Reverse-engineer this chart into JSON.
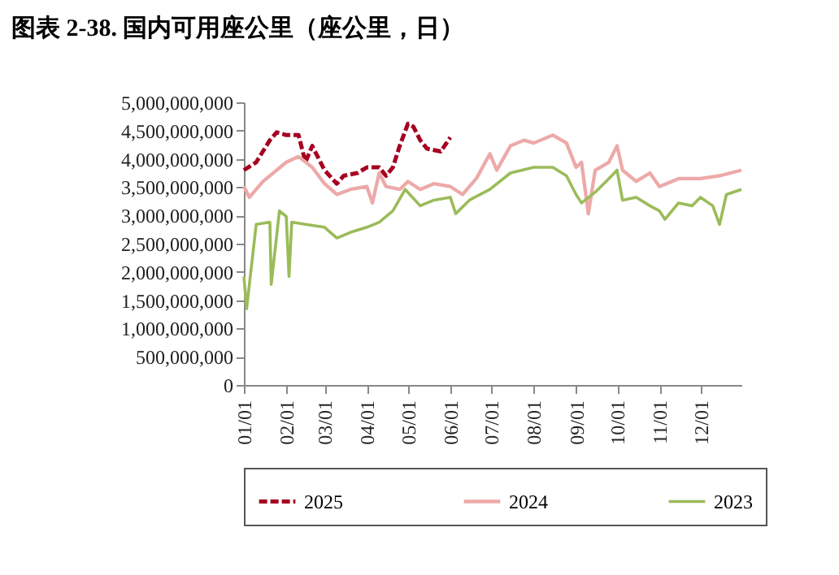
{
  "chart_data": {
    "type": "line",
    "title": "图表 2-38. 国内可用座公里（座公里，日）",
    "xlim": [
      "--01-01",
      "--12-31"
    ],
    "xticks": [
      {
        "value": "--01-01",
        "label": "01/01"
      },
      {
        "value": "--02-01",
        "label": "02/01"
      },
      {
        "value": "--03-01",
        "label": "03/01"
      },
      {
        "value": "--04-01",
        "label": "04/01"
      },
      {
        "value": "--05-01",
        "label": "05/01"
      },
      {
        "value": "--06-01",
        "label": "06/01"
      },
      {
        "value": "--07-01",
        "label": "07/01"
      },
      {
        "value": "--08-01",
        "label": "08/01"
      },
      {
        "value": "--09-01",
        "label": "09/01"
      },
      {
        "value": "--10-01",
        "label": "10/01"
      },
      {
        "value": "--11-01",
        "label": "11/01"
      },
      {
        "value": "--12-01",
        "label": "12/01"
      }
    ],
    "ylim": [
      0,
      5000000000
    ],
    "yticks": [
      {
        "value": 0,
        "label": "0"
      },
      {
        "value": 500000000,
        "label": "500,000,000"
      },
      {
        "value": 1000000000,
        "label": "1,000,000,000"
      },
      {
        "value": 1500000000,
        "label": "1,500,000,000"
      },
      {
        "value": 2000000000,
        "label": "2,000,000,000"
      },
      {
        "value": 2500000000,
        "label": "2,500,000,000"
      },
      {
        "value": 3000000000,
        "label": "3,000,000,000"
      },
      {
        "value": 3500000000,
        "label": "3,500,000,000"
      },
      {
        "value": 4000000000,
        "label": "4,000,000,000"
      },
      {
        "value": 4500000000,
        "label": "4,500,000,000"
      },
      {
        "value": 5000000000,
        "label": "5,000,000,000"
      }
    ],
    "legend": "bottom",
    "grid": false,
    "series": [
      {
        "name": "2025",
        "color": "#a50021",
        "line_style": "dashed",
        "x": [
          "--01-01",
          "--01-10",
          "--01-20",
          "--01-25",
          "--02-01",
          "--02-10",
          "--02-15",
          "--02-20",
          "--03-01",
          "--03-10",
          "--03-15",
          "--03-25",
          "--04-01",
          "--04-10",
          "--04-15",
          "--04-20",
          "--04-25",
          "--05-01",
          "--05-05",
          "--05-10",
          "--05-15",
          "--05-25",
          "--06-01"
        ],
        "values": [
          3800000000,
          3940000000,
          4330000000,
          4470000000,
          4420000000,
          4420000000,
          3940000000,
          4230000000,
          3800000000,
          3560000000,
          3700000000,
          3750000000,
          3850000000,
          3850000000,
          3700000000,
          3850000000,
          4230000000,
          4620000000,
          4570000000,
          4330000000,
          4180000000,
          4130000000,
          4380000000
        ]
      },
      {
        "name": "2024",
        "color": "#eda9a9",
        "line_style": "solid",
        "x": [
          "--01-01",
          "--01-05",
          "--01-15",
          "--01-25",
          "--02-01",
          "--02-10",
          "--02-20",
          "--03-01",
          "--03-10",
          "--03-20",
          "--04-01",
          "--04-05",
          "--04-10",
          "--04-15",
          "--04-25",
          "--05-01",
          "--05-10",
          "--05-20",
          "--06-01",
          "--06-10",
          "--06-20",
          "--06-30",
          "--07-05",
          "--07-15",
          "--07-25",
          "--08-01",
          "--08-15",
          "--08-25",
          "--09-01",
          "--09-05",
          "--09-10",
          "--09-15",
          "--09-25",
          "--10-01",
          "--10-05",
          "--10-15",
          "--10-25",
          "--11-01",
          "--11-15",
          "--12-01",
          "--12-15",
          "--12-31"
        ],
        "values": [
          3510000000,
          3320000000,
          3600000000,
          3800000000,
          3940000000,
          4040000000,
          3850000000,
          3560000000,
          3370000000,
          3460000000,
          3510000000,
          3220000000,
          3750000000,
          3510000000,
          3460000000,
          3600000000,
          3460000000,
          3560000000,
          3510000000,
          3370000000,
          3650000000,
          4090000000,
          3800000000,
          4230000000,
          4330000000,
          4280000000,
          4420000000,
          4280000000,
          3850000000,
          3940000000,
          3030000000,
          3800000000,
          3940000000,
          4230000000,
          3800000000,
          3600000000,
          3750000000,
          3510000000,
          3650000000,
          3650000000,
          3700000000,
          3800000000
        ]
      },
      {
        "name": "2023",
        "color": "#9bbb59",
        "line_style": "solid",
        "x": [
          "--01-01",
          "--01-03",
          "--01-10",
          "--01-20",
          "--01-21",
          "--01-27",
          "--02-01",
          "--02-03",
          "--02-05",
          "--02-15",
          "--03-01",
          "--03-10",
          "--03-20",
          "--04-01",
          "--04-10",
          "--04-20",
          "--04-29",
          "--05-10",
          "--05-20",
          "--06-01",
          "--06-05",
          "--06-15",
          "--06-30",
          "--07-15",
          "--08-01",
          "--08-15",
          "--08-25",
          "--09-01",
          "--09-05",
          "--09-15",
          "--09-25",
          "--10-01",
          "--10-05",
          "--10-15",
          "--10-25",
          "--11-01",
          "--11-05",
          "--11-15",
          "--11-25",
          "--12-01",
          "--12-10",
          "--12-15",
          "--12-20",
          "--12-31"
        ],
        "values": [
          1920000000,
          1350000000,
          2840000000,
          2880000000,
          1780000000,
          3080000000,
          2980000000,
          1920000000,
          2880000000,
          2840000000,
          2790000000,
          2600000000,
          2700000000,
          2790000000,
          2880000000,
          3080000000,
          3460000000,
          3170000000,
          3270000000,
          3320000000,
          3030000000,
          3270000000,
          3460000000,
          3750000000,
          3850000000,
          3850000000,
          3700000000,
          3370000000,
          3220000000,
          3410000000,
          3650000000,
          3800000000,
          3270000000,
          3320000000,
          3170000000,
          3080000000,
          2930000000,
          3220000000,
          3170000000,
          3320000000,
          3170000000,
          2840000000,
          3370000000,
          3460000000
        ]
      }
    ]
  }
}
